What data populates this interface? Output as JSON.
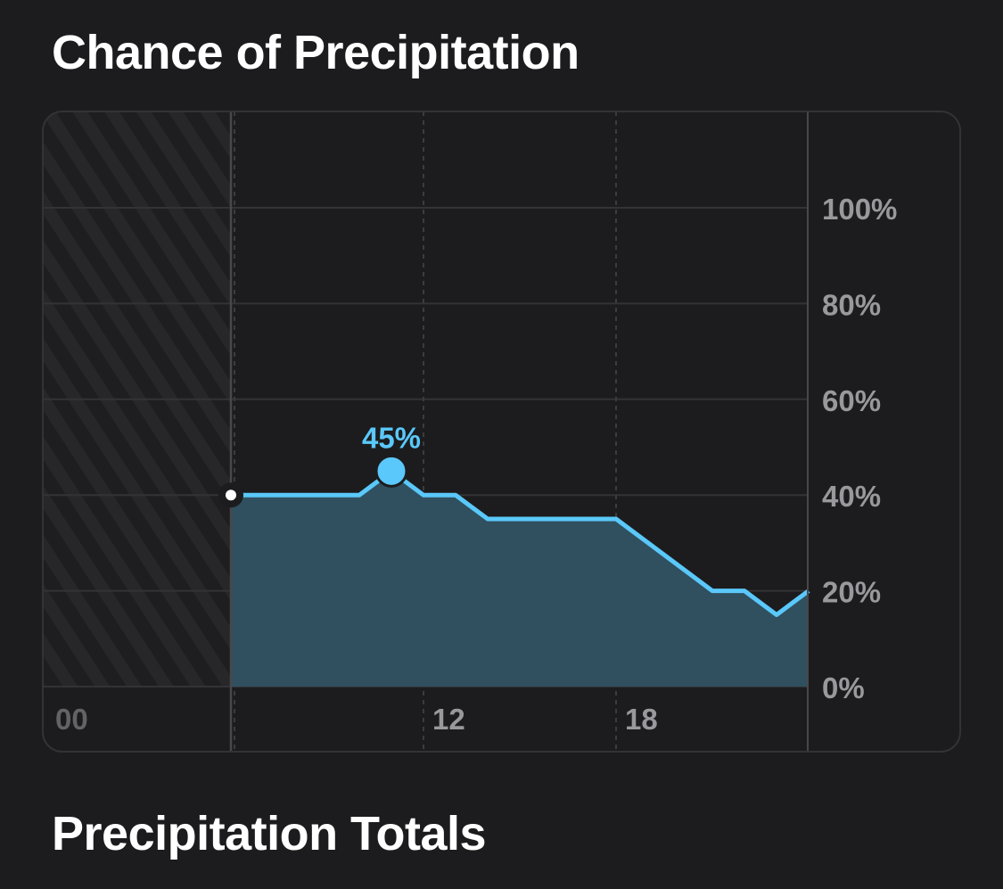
{
  "sections": {
    "precipitation_chance_title": "Chance of Precipitation",
    "precipitation_totals_title": "Precipitation Totals"
  },
  "colors": {
    "background": "#1c1c1e",
    "line": "#5ac8fa",
    "fill": "#30505f",
    "grid": "#3a3a3c",
    "tick_label": "#98989d",
    "past_tick_label": "#636366"
  },
  "chart_data": {
    "type": "area",
    "xlim": [
      0,
      24
    ],
    "ylim": [
      0,
      100
    ],
    "y_ticks": [
      0,
      20,
      40,
      60,
      80,
      100
    ],
    "y_tick_labels": [
      "0%",
      "20%",
      "40%",
      "60%",
      "80%",
      "100%"
    ],
    "x_ticks": [
      0,
      12,
      18
    ],
    "x_tick_labels": [
      "00",
      "12",
      "18"
    ],
    "past_until": 6,
    "x": [
      6,
      7,
      8,
      9,
      10,
      11,
      12,
      13,
      14,
      15,
      16,
      17,
      18,
      19,
      20,
      21,
      22,
      23,
      24
    ],
    "values": [
      40,
      40,
      40,
      40,
      40,
      45,
      40,
      40,
      35,
      35,
      35,
      35,
      35,
      30,
      25,
      20,
      20,
      15,
      20
    ],
    "current_point": {
      "x": 6,
      "y": 40
    },
    "peak": {
      "x": 11,
      "y": 45,
      "label": "45%"
    },
    "grid": true,
    "legend": "none"
  }
}
